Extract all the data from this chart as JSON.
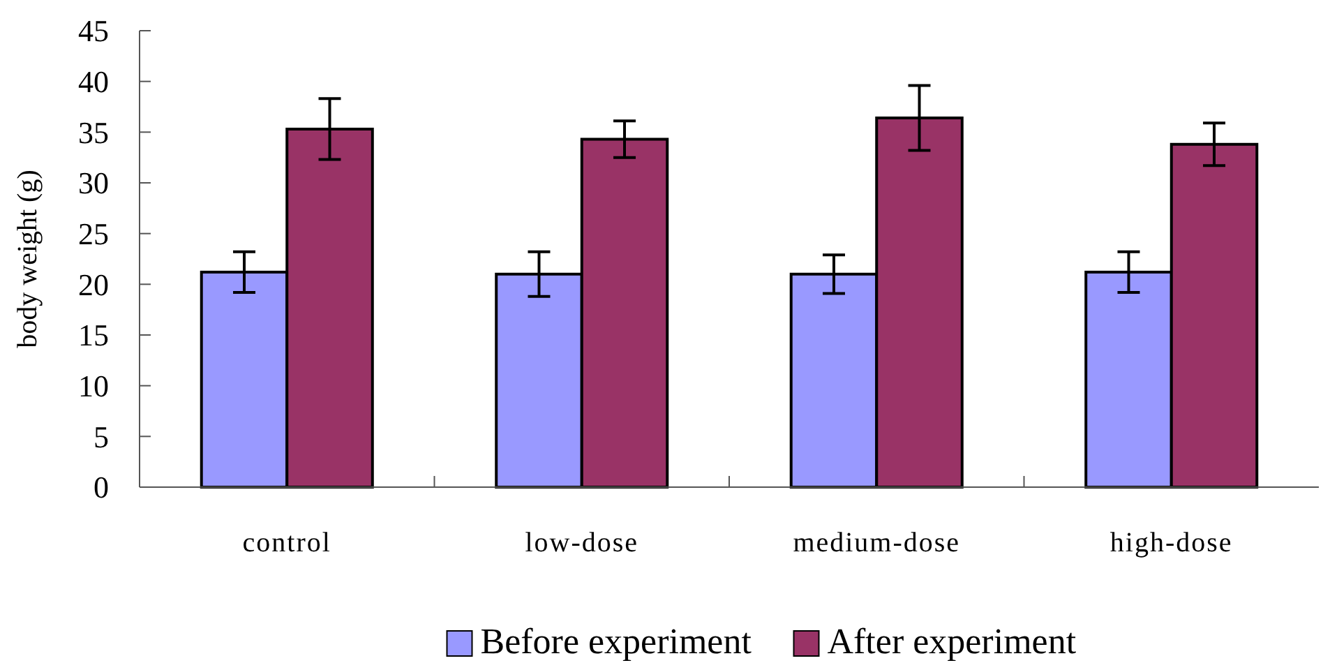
{
  "chart_data": {
    "type": "bar",
    "ylabel": "body weight (g)",
    "categories": [
      "control",
      "low-dose",
      "medium-dose",
      "high-dose"
    ],
    "series": [
      {
        "name": "Before experiment",
        "color": "#9999ff",
        "values": [
          21.2,
          21.0,
          21.0,
          21.2
        ],
        "errors": [
          2.0,
          2.2,
          1.9,
          2.0
        ]
      },
      {
        "name": "After experiment",
        "color": "#993366",
        "values": [
          35.3,
          34.3,
          36.4,
          33.8
        ],
        "errors": [
          3.0,
          1.8,
          3.2,
          2.1
        ]
      }
    ],
    "ylim": [
      0,
      45
    ],
    "yticks": [
      0,
      5,
      10,
      15,
      20,
      25,
      30,
      35,
      40,
      45
    ],
    "legend": "bottom",
    "grid": false
  }
}
